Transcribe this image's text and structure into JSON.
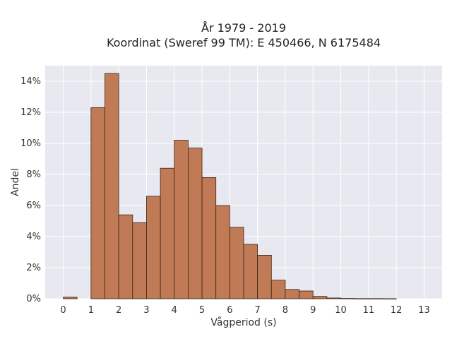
{
  "chart_data": {
    "type": "bar",
    "title_line1": "År 1979 - 2019",
    "title_line2": "Koordinat (Sweref 99 TM): E 450466, N 6175484",
    "xlabel": "Vågperiod (s)",
    "ylabel": "Andel",
    "xlim": [
      -0.65,
      13.65
    ],
    "ylim": [
      0,
      15
    ],
    "x_ticks": [
      0,
      1,
      2,
      3,
      4,
      5,
      6,
      7,
      8,
      9,
      10,
      11,
      12,
      13
    ],
    "y_ticks": [
      0,
      2,
      4,
      6,
      8,
      10,
      12,
      14
    ],
    "y_tick_labels": [
      "0%",
      "2%",
      "4%",
      "6%",
      "8%",
      "10%",
      "12%",
      "14%"
    ],
    "bin_width": 0.5,
    "bin_starts": [
      0,
      0.5,
      1,
      1.5,
      2,
      2.5,
      3,
      3.5,
      4,
      4.5,
      5,
      5.5,
      6,
      6.5,
      7,
      7.5,
      8,
      8.5,
      9,
      9.5,
      10,
      10.5,
      11,
      11.5
    ],
    "values": [
      0.1,
      0,
      12.3,
      14.5,
      5.4,
      4.9,
      6.6,
      8.4,
      10.2,
      9.7,
      7.8,
      6.0,
      4.6,
      3.5,
      2.8,
      1.2,
      0.6,
      0.5,
      0.15,
      0.05,
      0.02,
      0.01,
      0.01,
      0.005
    ],
    "grid": true,
    "colors": {
      "bar": "#c07a55",
      "bar_edge": "#3a2518",
      "plot_bg": "#e8e8f1",
      "grid": "#ffffff"
    }
  }
}
